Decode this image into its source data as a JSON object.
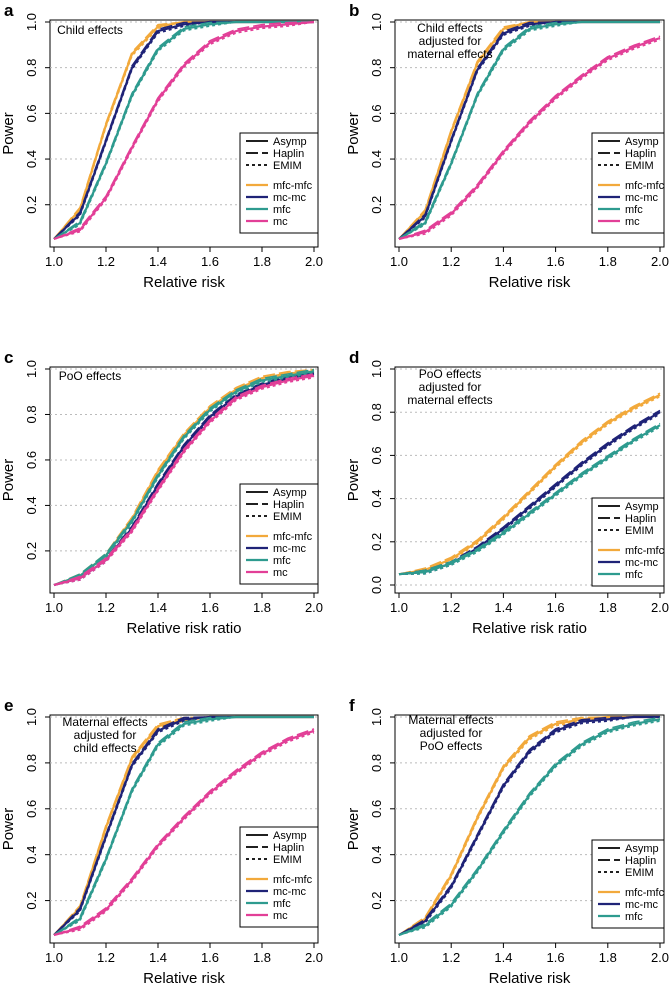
{
  "figure": {
    "title": ""
  },
  "colors": {
    "mfc-mfc": "#f2a93b",
    "mc-mc": "#1f2377",
    "mfc": "#2e9b8f",
    "mc": "#e23f97",
    "grid": "#bbbbbb",
    "axis": "#000000"
  },
  "legend": {
    "methods": [
      {
        "label": "Asymp",
        "dash": "solid"
      },
      {
        "label": "Haplin",
        "dash": "longdash"
      },
      {
        "label": "EMIM",
        "dash": "dotted"
      }
    ]
  },
  "chart_data": [
    {
      "type": "line",
      "panel": "a",
      "title": "Child effects",
      "xlabel": "Relative risk",
      "ylabel": "Power",
      "xlim": [
        1.0,
        2.0
      ],
      "ylim": [
        0.05,
        1.0
      ],
      "x": [
        1.0,
        1.1,
        1.2,
        1.3,
        1.4,
        1.5,
        1.6,
        1.7,
        1.8,
        1.9,
        2.0
      ],
      "xticks": [
        "1.0",
        "1.2",
        "1.4",
        "1.6",
        "1.8",
        "2.0"
      ],
      "yticks": [
        "0.2",
        "0.4",
        "0.6",
        "0.8",
        "1.0"
      ],
      "series": [
        {
          "name": "mfc-mfc",
          "values": [
            0.05,
            0.18,
            0.55,
            0.86,
            0.98,
            1.0,
            1.0,
            1.0,
            1.0,
            1.0,
            1.0
          ]
        },
        {
          "name": "mc-mc",
          "values": [
            0.05,
            0.16,
            0.48,
            0.8,
            0.96,
            0.99,
            1.0,
            1.0,
            1.0,
            1.0,
            1.0
          ]
        },
        {
          "name": "mfc",
          "values": [
            0.05,
            0.12,
            0.38,
            0.68,
            0.88,
            0.97,
            0.99,
            1.0,
            1.0,
            1.0,
            1.0
          ]
        },
        {
          "name": "mc",
          "values": [
            0.05,
            0.09,
            0.23,
            0.45,
            0.66,
            0.81,
            0.91,
            0.96,
            0.98,
            0.99,
            1.0
          ]
        }
      ]
    },
    {
      "type": "line",
      "panel": "b",
      "title": "Child effects adjusted for maternal effects",
      "title_lines": [
        "Child effects",
        "adjusted for",
        "maternal effects"
      ],
      "xlabel": "Relative risk",
      "ylabel": "Power",
      "xlim": [
        1.0,
        2.0
      ],
      "ylim": [
        0.05,
        1.0
      ],
      "x": [
        1.0,
        1.1,
        1.2,
        1.3,
        1.4,
        1.5,
        1.6,
        1.7,
        1.8,
        1.9,
        2.0
      ],
      "xticks": [
        "1.0",
        "1.2",
        "1.4",
        "1.6",
        "1.8",
        "2.0"
      ],
      "yticks": [
        "0.2",
        "0.4",
        "0.6",
        "0.8",
        "1.0"
      ],
      "series": [
        {
          "name": "mfc-mfc",
          "values": [
            0.05,
            0.17,
            0.52,
            0.82,
            0.97,
            1.0,
            1.0,
            1.0,
            1.0,
            1.0,
            1.0
          ]
        },
        {
          "name": "mc-mc",
          "values": [
            0.05,
            0.15,
            0.48,
            0.79,
            0.95,
            0.99,
            1.0,
            1.0,
            1.0,
            1.0,
            1.0
          ]
        },
        {
          "name": "mfc",
          "values": [
            0.05,
            0.12,
            0.38,
            0.68,
            0.88,
            0.97,
            0.99,
            1.0,
            1.0,
            1.0,
            1.0
          ]
        },
        {
          "name": "mc",
          "values": [
            0.05,
            0.08,
            0.16,
            0.28,
            0.43,
            0.56,
            0.67,
            0.76,
            0.84,
            0.89,
            0.93
          ]
        }
      ]
    },
    {
      "type": "line",
      "panel": "c",
      "title": "PoO effects",
      "xlabel": "Relative risk ratio",
      "ylabel": "Power",
      "xlim": [
        1.0,
        2.0
      ],
      "ylim": [
        0.05,
        1.0
      ],
      "x": [
        1.0,
        1.1,
        1.2,
        1.3,
        1.4,
        1.5,
        1.6,
        1.7,
        1.8,
        1.9,
        2.0
      ],
      "xticks": [
        "1.0",
        "1.2",
        "1.4",
        "1.6",
        "1.8",
        "2.0"
      ],
      "yticks": [
        "0.2",
        "0.4",
        "0.6",
        "0.8",
        "1.0"
      ],
      "series": [
        {
          "name": "mfc-mfc",
          "values": [
            0.05,
            0.09,
            0.18,
            0.34,
            0.55,
            0.71,
            0.83,
            0.91,
            0.96,
            0.98,
            0.99
          ]
        },
        {
          "name": "mc-mc",
          "values": [
            0.05,
            0.08,
            0.16,
            0.3,
            0.49,
            0.66,
            0.79,
            0.88,
            0.93,
            0.96,
            0.98
          ]
        },
        {
          "name": "mfc",
          "values": [
            0.05,
            0.09,
            0.18,
            0.33,
            0.53,
            0.7,
            0.82,
            0.9,
            0.95,
            0.97,
            0.99
          ]
        },
        {
          "name": "mc",
          "values": [
            0.05,
            0.08,
            0.16,
            0.29,
            0.47,
            0.64,
            0.77,
            0.87,
            0.92,
            0.95,
            0.97
          ]
        }
      ]
    },
    {
      "type": "line",
      "panel": "d",
      "title": "PoO effects adjusted for maternal effects",
      "title_lines": [
        "PoO effects",
        "adjusted for",
        "maternal effects"
      ],
      "xlabel": "Relative risk ratio",
      "ylabel": "Power",
      "xlim": [
        1.0,
        2.0
      ],
      "ylim": [
        0.0,
        1.0
      ],
      "x": [
        1.0,
        1.1,
        1.2,
        1.3,
        1.4,
        1.5,
        1.6,
        1.7,
        1.8,
        1.9,
        2.0
      ],
      "xticks": [
        "1.0",
        "1.2",
        "1.4",
        "1.6",
        "1.8",
        "2.0"
      ],
      "yticks": [
        "0.0",
        "0.2",
        "0.4",
        "0.6",
        "0.8",
        "1.0"
      ],
      "series": [
        {
          "name": "mfc-mfc",
          "values": [
            0.05,
            0.07,
            0.12,
            0.2,
            0.31,
            0.43,
            0.55,
            0.66,
            0.75,
            0.82,
            0.88
          ]
        },
        {
          "name": "mc-mc",
          "values": [
            0.05,
            0.06,
            0.1,
            0.17,
            0.26,
            0.36,
            0.46,
            0.56,
            0.65,
            0.73,
            0.8
          ]
        },
        {
          "name": "mfc",
          "values": [
            0.05,
            0.06,
            0.1,
            0.16,
            0.24,
            0.33,
            0.42,
            0.51,
            0.59,
            0.67,
            0.74
          ]
        }
      ]
    },
    {
      "type": "line",
      "panel": "e",
      "title": "Maternal effects adjusted for child effects",
      "title_lines": [
        "Maternal effects",
        "adjusted for",
        "child effects"
      ],
      "xlabel": "Relative risk",
      "ylabel": "Power",
      "xlim": [
        1.0,
        2.0
      ],
      "ylim": [
        0.05,
        1.0
      ],
      "x": [
        1.0,
        1.1,
        1.2,
        1.3,
        1.4,
        1.5,
        1.6,
        1.7,
        1.8,
        1.9,
        2.0
      ],
      "xticks": [
        "1.0",
        "1.2",
        "1.4",
        "1.6",
        "1.8",
        "2.0"
      ],
      "yticks": [
        "0.2",
        "0.4",
        "0.6",
        "0.8",
        "1.0"
      ],
      "series": [
        {
          "name": "mfc-mfc",
          "values": [
            0.05,
            0.17,
            0.52,
            0.82,
            0.96,
            0.99,
            1.0,
            1.0,
            1.0,
            1.0,
            1.0
          ]
        },
        {
          "name": "mc-mc",
          "values": [
            0.05,
            0.16,
            0.48,
            0.79,
            0.94,
            0.99,
            1.0,
            1.0,
            1.0,
            1.0,
            1.0
          ]
        },
        {
          "name": "mfc",
          "values": [
            0.05,
            0.12,
            0.38,
            0.68,
            0.88,
            0.97,
            0.99,
            1.0,
            1.0,
            1.0,
            1.0
          ]
        },
        {
          "name": "mc",
          "values": [
            0.05,
            0.08,
            0.16,
            0.29,
            0.44,
            0.56,
            0.67,
            0.76,
            0.84,
            0.9,
            0.94
          ]
        }
      ]
    },
    {
      "type": "line",
      "panel": "f",
      "title": "Maternal effects adjusted for PoO effects",
      "title_lines": [
        "Maternal effects",
        "adjusted for",
        "PoO effects"
      ],
      "xlabel": "Relative risk",
      "ylabel": "Power",
      "xlim": [
        1.0,
        2.0
      ],
      "ylim": [
        0.05,
        1.0
      ],
      "x": [
        1.0,
        1.1,
        1.2,
        1.3,
        1.4,
        1.5,
        1.6,
        1.7,
        1.8,
        1.9,
        2.0
      ],
      "xticks": [
        "1.0",
        "1.2",
        "1.4",
        "1.6",
        "1.8",
        "2.0"
      ],
      "yticks": [
        "0.2",
        "0.4",
        "0.6",
        "0.8",
        "1.0"
      ],
      "series": [
        {
          "name": "mfc-mfc",
          "values": [
            0.05,
            0.12,
            0.31,
            0.56,
            0.78,
            0.91,
            0.97,
            0.99,
            1.0,
            1.0,
            1.0
          ]
        },
        {
          "name": "mc-mc",
          "values": [
            0.05,
            0.11,
            0.26,
            0.48,
            0.7,
            0.85,
            0.94,
            0.98,
            0.99,
            1.0,
            1.0
          ]
        },
        {
          "name": "mfc",
          "values": [
            0.05,
            0.09,
            0.18,
            0.33,
            0.5,
            0.66,
            0.79,
            0.88,
            0.94,
            0.97,
            0.99
          ]
        }
      ]
    }
  ]
}
